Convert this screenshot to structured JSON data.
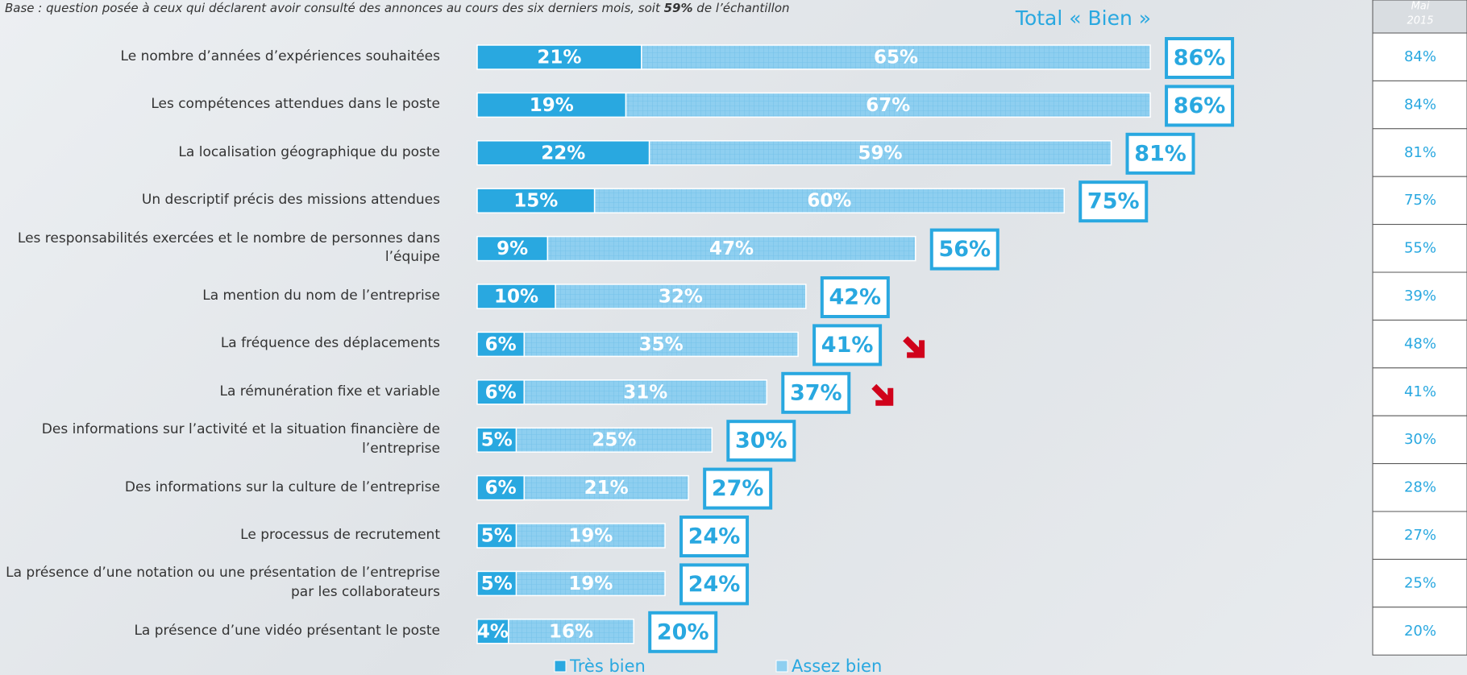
{
  "chart_data": {
    "type": "stacked-bar-horizontal",
    "subtitle": [
      "Base : question posée à ceux qui déclarent avoir consulté des annonces au cours des six derniers mois, soit ",
      "59%",
      " de l’échantillon"
    ],
    "categories": [
      "Le nombre d’années d’expériences souhaitées",
      "Les compétences attendues dans le poste",
      "La localisation géographique du poste",
      "Un descriptif précis des missions attendues",
      "Les responsabilités exercées et le nombre de personnes dans l’équipe",
      "La mention du nom de l’entreprise",
      "La fréquence des déplacements",
      "La rémunération fixe et variable",
      "Des informations sur l’activité et la situation financière de l’entreprise",
      "Des informations sur la culture de l’entreprise",
      "Le processus de recrutement",
      "La présence d’une notation ou une présentation de l’entreprise par les collaborateurs",
      "La présence d’une vidéo présentant le poste"
    ],
    "series": [
      {
        "name": "Très bien",
        "color": "#29a8e0",
        "values": [
          21,
          19,
          22,
          15,
          9,
          10,
          6,
          6,
          5,
          6,
          5,
          5,
          4
        ],
        "value_labels": [
          "21%",
          "19%",
          "22%",
          "15%",
          "9%",
          "10%",
          "6%",
          "6%",
          "5%",
          "6%",
          "5%",
          "5%",
          "4%"
        ]
      },
      {
        "name": "Assez bien",
        "color": "#8ecff0",
        "values": [
          65,
          67,
          59,
          60,
          47,
          32,
          35,
          31,
          25,
          21,
          19,
          19,
          16
        ],
        "value_labels": [
          "65%",
          "67%",
          "59%",
          "60%",
          "47%",
          "32%",
          "35%",
          "31%",
          "25%",
          "21%",
          "19%",
          "19%",
          "16%"
        ]
      }
    ],
    "total_title": "Total « Bien »",
    "totals": [
      86,
      86,
      81,
      75,
      56,
      42,
      41,
      37,
      30,
      27,
      24,
      24,
      20
    ],
    "totals_labels": [
      "86%",
      "86%",
      "81%",
      "75%",
      "56%",
      "42%",
      "41%",
      "37%",
      "30%",
      "27%",
      "24%",
      "24%",
      "20%"
    ],
    "down_arrow": [
      false,
      false,
      false,
      false,
      false,
      false,
      true,
      true,
      false,
      false,
      false,
      false,
      false
    ],
    "arrow_color": "#d0021b",
    "comparison": {
      "title_lines": [
        "Mai",
        "2015"
      ],
      "values": [
        84,
        84,
        81,
        75,
        55,
        39,
        48,
        41,
        30,
        28,
        27,
        25,
        20
      ],
      "value_labels": [
        "84%",
        "84%",
        "81%",
        "75%",
        "55%",
        "39%",
        "48%",
        "41%",
        "30%",
        "28%",
        "27%",
        "25%",
        "20%"
      ]
    }
  }
}
